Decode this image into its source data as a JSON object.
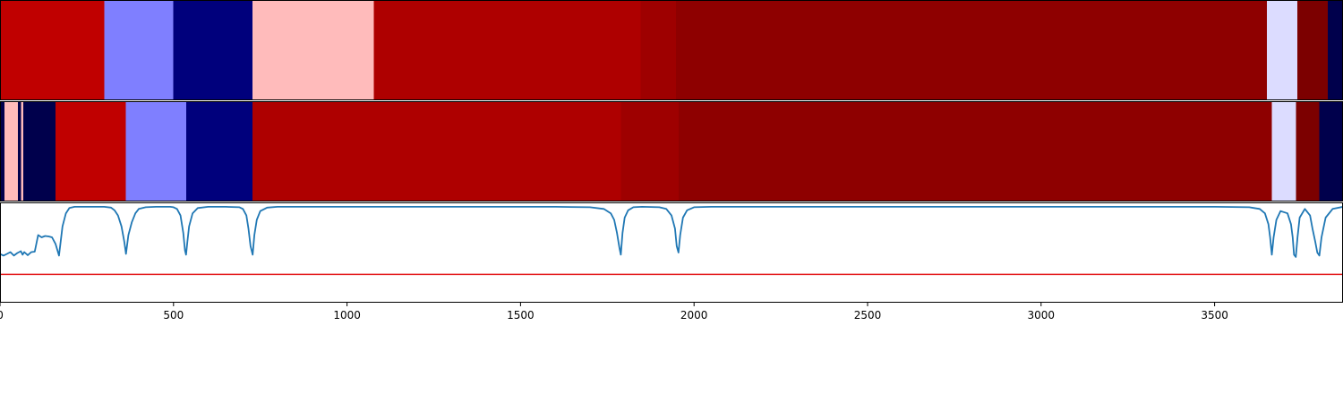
{
  "chart_data": {
    "type": "heatmap",
    "title": "",
    "xlabel": "",
    "ylabel": "",
    "xlim": [
      0,
      3870
    ],
    "x_ticks": [
      0,
      500,
      1000,
      1500,
      2000,
      2500,
      3000,
      3500
    ],
    "x_tick_labels": [
      "0",
      "500",
      "1000",
      "1500",
      "2000",
      "2500",
      "3000",
      "3500"
    ],
    "grid": false,
    "rows": [
      {
        "segments": [
          {
            "start": 0,
            "end": 301,
            "color": "#c00000"
          },
          {
            "start": 301,
            "end": 499,
            "color": "#7f7fff"
          },
          {
            "start": 499,
            "end": 727,
            "color": "#00007c"
          },
          {
            "start": 727,
            "end": 1077,
            "color": "#ffbbbb"
          },
          {
            "start": 1077,
            "end": 1846,
            "color": "#ae0000"
          },
          {
            "start": 1846,
            "end": 1948,
            "color": "#9e0000"
          },
          {
            "start": 1948,
            "end": 3651,
            "color": "#8e0000"
          },
          {
            "start": 3651,
            "end": 3739,
            "color": "#dcdcff"
          },
          {
            "start": 3739,
            "end": 3826,
            "color": "#7c0000"
          },
          {
            "start": 3826,
            "end": 3870,
            "color": "#00004c"
          }
        ]
      },
      {
        "segments": [
          {
            "start": 0,
            "end": 13,
            "color": "#00004c"
          },
          {
            "start": 13,
            "end": 52,
            "color": "#ffbbbb"
          },
          {
            "start": 52,
            "end": 60,
            "color": "#00004c"
          },
          {
            "start": 60,
            "end": 67,
            "color": "#ffbbbb"
          },
          {
            "start": 67,
            "end": 160,
            "color": "#00004c"
          },
          {
            "start": 160,
            "end": 363,
            "color": "#c00000"
          },
          {
            "start": 363,
            "end": 536,
            "color": "#7f7fff"
          },
          {
            "start": 536,
            "end": 728,
            "color": "#00007c"
          },
          {
            "start": 728,
            "end": 1789,
            "color": "#ae0000"
          },
          {
            "start": 1789,
            "end": 1955,
            "color": "#9e0000"
          },
          {
            "start": 1955,
            "end": 3665,
            "color": "#8e0000"
          },
          {
            "start": 3665,
            "end": 3734,
            "color": "#dcdcff"
          },
          {
            "start": 3734,
            "end": 3802,
            "color": "#7c0000"
          },
          {
            "start": 3802,
            "end": 3870,
            "color": "#00004c"
          }
        ]
      }
    ],
    "line_panel": {
      "ylim": [
        -1.2,
        1.1
      ],
      "threshold": -0.55,
      "threshold_color": "#e41a1c",
      "line_color": "#1f77b4",
      "series": {
        "x": [
          0,
          10,
          20,
          30,
          40,
          50,
          60,
          65,
          70,
          80,
          90,
          100,
          110,
          120,
          130,
          140,
          150,
          160,
          170,
          180,
          190,
          200,
          215,
          230,
          250,
          300,
          320,
          330,
          340,
          350,
          358,
          363,
          370,
          380,
          390,
          400,
          420,
          450,
          490,
          500,
          510,
          520,
          528,
          533,
          536,
          540,
          545,
          555,
          570,
          600,
          650,
          690,
          700,
          710,
          716,
          722,
          728,
          733,
          740,
          750,
          770,
          800,
          900,
          1000,
          1200,
          1400,
          1600,
          1700,
          1740,
          1760,
          1770,
          1778,
          1785,
          1789,
          1794,
          1800,
          1810,
          1825,
          1850,
          1900,
          1920,
          1935,
          1945,
          1950,
          1955,
          1960,
          1968,
          1980,
          2000,
          2050,
          2100,
          2500,
          3000,
          3500,
          3600,
          3630,
          3645,
          3655,
          3660,
          3665,
          3670,
          3678,
          3690,
          3710,
          3720,
          3725,
          3729,
          3734,
          3739,
          3745,
          3760,
          3775,
          3782,
          3790,
          3796,
          3802,
          3808,
          3820,
          3840,
          3870
        ],
        "y": [
          -0.08,
          -0.12,
          -0.08,
          -0.04,
          -0.12,
          -0.06,
          -0.02,
          -0.1,
          -0.04,
          -0.11,
          -0.04,
          -0.03,
          0.35,
          0.3,
          0.33,
          0.32,
          0.3,
          0.15,
          -0.12,
          0.55,
          0.85,
          0.97,
          1.0,
          1.0,
          1.0,
          1.0,
          0.98,
          0.92,
          0.8,
          0.55,
          0.2,
          -0.08,
          0.35,
          0.65,
          0.85,
          0.95,
          0.99,
          1.0,
          1.0,
          0.99,
          0.95,
          0.8,
          0.4,
          0.0,
          -0.1,
          0.2,
          0.55,
          0.85,
          0.97,
          1.0,
          1.0,
          0.99,
          0.95,
          0.8,
          0.5,
          0.1,
          -0.1,
          0.35,
          0.7,
          0.9,
          0.98,
          1.0,
          1.0,
          1.0,
          1.0,
          1.0,
          1.0,
          0.99,
          0.95,
          0.85,
          0.7,
          0.4,
          0.05,
          -0.1,
          0.4,
          0.75,
          0.92,
          0.99,
          1.0,
          0.99,
          0.95,
          0.8,
          0.5,
          0.1,
          -0.05,
          0.35,
          0.75,
          0.92,
          0.99,
          1.0,
          1.0,
          1.0,
          1.0,
          1.0,
          0.99,
          0.95,
          0.85,
          0.6,
          0.3,
          -0.1,
          0.3,
          0.7,
          0.9,
          0.85,
          0.6,
          0.3,
          -0.1,
          -0.15,
          0.3,
          0.75,
          0.95,
          0.8,
          0.5,
          0.2,
          -0.05,
          -0.12,
          0.3,
          0.75,
          0.95,
          1.0
        ]
      }
    },
    "axis_color": "#000000"
  }
}
